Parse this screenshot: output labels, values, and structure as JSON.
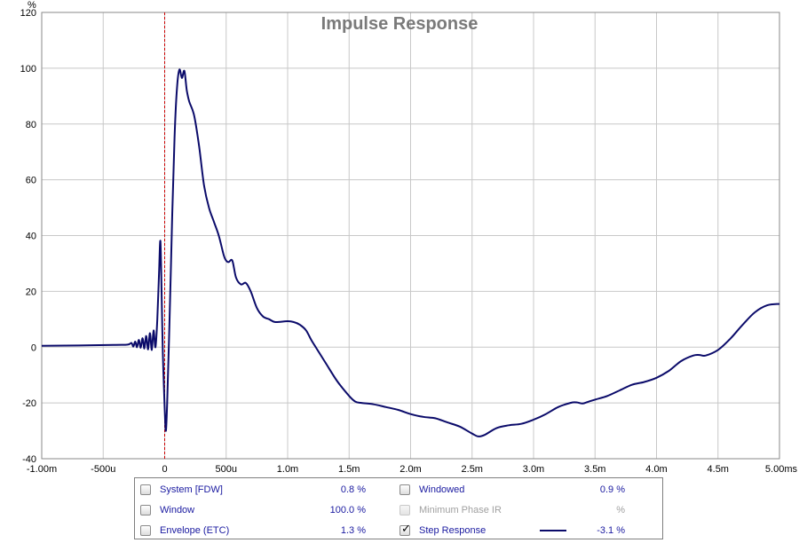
{
  "chart_data": {
    "type": "line",
    "title": "Impulse Response",
    "ylabel": "%",
    "xlabel": "",
    "xlim": [
      -1.0,
      5.0
    ],
    "ylim": [
      -40,
      120
    ],
    "x_unit": "ms",
    "x_ticks": [
      {
        "v": -1.0,
        "label": "-1.00m"
      },
      {
        "v": -0.5,
        "label": "-500u"
      },
      {
        "v": 0.0,
        "label": "0"
      },
      {
        "v": 0.5,
        "label": "500u"
      },
      {
        "v": 1.0,
        "label": "1.0m"
      },
      {
        "v": 1.5,
        "label": "1.5m"
      },
      {
        "v": 2.0,
        "label": "2.0m"
      },
      {
        "v": 2.5,
        "label": "2.5m"
      },
      {
        "v": 3.0,
        "label": "3.0m"
      },
      {
        "v": 3.5,
        "label": "3.5m"
      },
      {
        "v": 4.0,
        "label": "4.0m"
      },
      {
        "v": 4.5,
        "label": "4.5m"
      },
      {
        "v": 5.0,
        "label": "5.00ms"
      }
    ],
    "y_ticks": [
      -40,
      -20,
      0,
      20,
      40,
      60,
      80,
      100,
      120
    ],
    "grid": true,
    "marker_line_x": 0.0,
    "series": [
      {
        "name": "Step Response",
        "color": "#0b0b6a",
        "points": [
          [
            -1.0,
            0.5
          ],
          [
            -0.7,
            0.6
          ],
          [
            -0.4,
            0.8
          ],
          [
            -0.3,
            0.9
          ],
          [
            -0.27,
            1.5
          ],
          [
            -0.255,
            0.2
          ],
          [
            -0.24,
            2.0
          ],
          [
            -0.225,
            0.0
          ],
          [
            -0.21,
            2.6
          ],
          [
            -0.195,
            -0.2
          ],
          [
            -0.18,
            3.2
          ],
          [
            -0.165,
            -0.5
          ],
          [
            -0.15,
            4.0
          ],
          [
            -0.135,
            -0.8
          ],
          [
            -0.12,
            5.0
          ],
          [
            -0.105,
            -1.0
          ],
          [
            -0.09,
            6.0
          ],
          [
            -0.075,
            0.0
          ],
          [
            -0.06,
            10.0
          ],
          [
            -0.045,
            28.0
          ],
          [
            -0.035,
            38.0
          ],
          [
            -0.025,
            20.0
          ],
          [
            -0.015,
            -2.0
          ],
          [
            0.0,
            -22.0
          ],
          [
            0.01,
            -30.0
          ],
          [
            0.02,
            -20.0
          ],
          [
            0.04,
            10.0
          ],
          [
            0.06,
            45.0
          ],
          [
            0.08,
            75.0
          ],
          [
            0.1,
            93.0
          ],
          [
            0.12,
            99.5
          ],
          [
            0.14,
            96.5
          ],
          [
            0.16,
            99.0
          ],
          [
            0.18,
            92.0
          ],
          [
            0.2,
            88.0
          ],
          [
            0.24,
            83.0
          ],
          [
            0.28,
            72.0
          ],
          [
            0.32,
            58.0
          ],
          [
            0.36,
            50.0
          ],
          [
            0.4,
            45.0
          ],
          [
            0.44,
            40.0
          ],
          [
            0.48,
            33.0
          ],
          [
            0.5,
            31.0
          ],
          [
            0.52,
            30.5
          ],
          [
            0.55,
            31.0
          ],
          [
            0.58,
            25.0
          ],
          [
            0.62,
            22.5
          ],
          [
            0.66,
            23.0
          ],
          [
            0.7,
            20.0
          ],
          [
            0.75,
            14.0
          ],
          [
            0.8,
            11.0
          ],
          [
            0.85,
            10.0
          ],
          [
            0.9,
            9.0
          ],
          [
            1.0,
            9.3
          ],
          [
            1.05,
            9.0
          ],
          [
            1.1,
            8.0
          ],
          [
            1.15,
            6.0
          ],
          [
            1.2,
            2.0
          ],
          [
            1.3,
            -5.0
          ],
          [
            1.4,
            -12.0
          ],
          [
            1.5,
            -17.5
          ],
          [
            1.55,
            -19.5
          ],
          [
            1.6,
            -20.0
          ],
          [
            1.7,
            -20.5
          ],
          [
            1.8,
            -21.5
          ],
          [
            1.9,
            -22.5
          ],
          [
            2.0,
            -24.0
          ],
          [
            2.1,
            -25.0
          ],
          [
            2.2,
            -25.5
          ],
          [
            2.3,
            -27.0
          ],
          [
            2.4,
            -28.5
          ],
          [
            2.5,
            -31.0
          ],
          [
            2.55,
            -32.0
          ],
          [
            2.6,
            -31.5
          ],
          [
            2.7,
            -29.0
          ],
          [
            2.8,
            -28.0
          ],
          [
            2.9,
            -27.5
          ],
          [
            3.0,
            -26.0
          ],
          [
            3.1,
            -24.0
          ],
          [
            3.2,
            -21.5
          ],
          [
            3.3,
            -20.0
          ],
          [
            3.35,
            -19.8
          ],
          [
            3.4,
            -20.2
          ],
          [
            3.45,
            -19.5
          ],
          [
            3.5,
            -18.8
          ],
          [
            3.6,
            -17.5
          ],
          [
            3.7,
            -15.5
          ],
          [
            3.8,
            -13.5
          ],
          [
            3.9,
            -12.5
          ],
          [
            4.0,
            -11.0
          ],
          [
            4.1,
            -8.5
          ],
          [
            4.2,
            -5.0
          ],
          [
            4.3,
            -3.0
          ],
          [
            4.35,
            -2.8
          ],
          [
            4.4,
            -3.0
          ],
          [
            4.5,
            -1.0
          ],
          [
            4.6,
            3.0
          ],
          [
            4.7,
            8.0
          ],
          [
            4.8,
            12.5
          ],
          [
            4.9,
            15.0
          ],
          [
            5.0,
            15.5
          ]
        ]
      }
    ]
  },
  "legend": {
    "rows": [
      [
        {
          "label": "System [FDW]",
          "value": "0.8 %",
          "checked": false,
          "disabled": false
        },
        {
          "label": "Windowed",
          "value": "0.9 %",
          "checked": false,
          "disabled": false
        }
      ],
      [
        {
          "label": "Window",
          "value": "100.0 %",
          "checked": false,
          "disabled": false
        },
        {
          "label": "Minimum Phase IR",
          "value": "%",
          "checked": false,
          "disabled": true
        }
      ],
      [
        {
          "label": "Envelope (ETC)",
          "value": "1.3 %",
          "checked": false,
          "disabled": false
        },
        {
          "label": "Step Response",
          "value": "-3.1 %",
          "checked": true,
          "disabled": false,
          "swatch": "#0b0b6a"
        }
      ]
    ]
  }
}
